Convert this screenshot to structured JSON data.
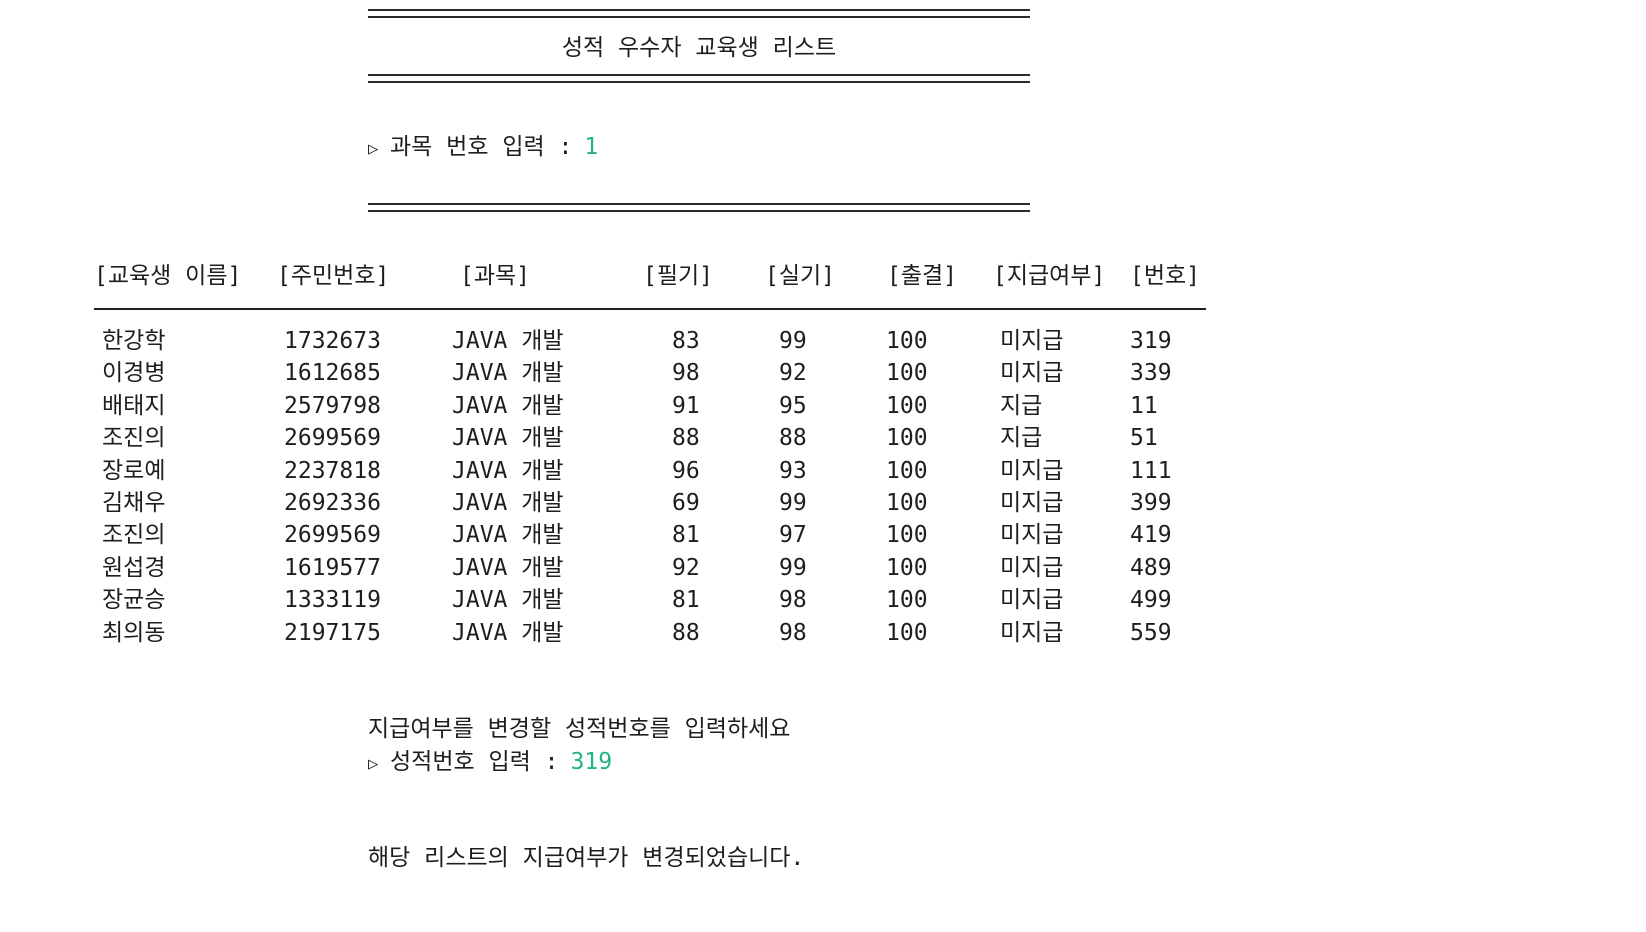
{
  "title": "성적 우수자 교육생 리스트",
  "subject_prompt": {
    "label": "과목 번호 입력 :",
    "value": "1"
  },
  "table": {
    "headers": {
      "name": "[교육생 이름]",
      "ssn": "[주민번호]",
      "subject": "[과목]",
      "written": "[필기]",
      "practical": "[실기]",
      "attendance": "[출결]",
      "payment": "[지급여부]",
      "number": "[번호]"
    },
    "rows": [
      {
        "name": "한강학",
        "ssn": "1732673",
        "subject": "JAVA 개발",
        "written": "83",
        "practical": "99",
        "attendance": "100",
        "payment": "미지급",
        "number": "319"
      },
      {
        "name": "이경병",
        "ssn": "1612685",
        "subject": "JAVA 개발",
        "written": "98",
        "practical": "92",
        "attendance": "100",
        "payment": "미지급",
        "number": "339"
      },
      {
        "name": "배태지",
        "ssn": "2579798",
        "subject": "JAVA 개발",
        "written": "91",
        "practical": "95",
        "attendance": "100",
        "payment": "지급",
        "number": "11"
      },
      {
        "name": "조진의",
        "ssn": "2699569",
        "subject": "JAVA 개발",
        "written": "88",
        "practical": "88",
        "attendance": "100",
        "payment": "지급",
        "number": "51"
      },
      {
        "name": "장로예",
        "ssn": "2237818",
        "subject": "JAVA 개발",
        "written": "96",
        "practical": "93",
        "attendance": "100",
        "payment": "미지급",
        "number": "111"
      },
      {
        "name": "김채우",
        "ssn": "2692336",
        "subject": "JAVA 개발",
        "written": "69",
        "practical": "99",
        "attendance": "100",
        "payment": "미지급",
        "number": "399"
      },
      {
        "name": "조진의",
        "ssn": "2699569",
        "subject": "JAVA 개발",
        "written": "81",
        "practical": "97",
        "attendance": "100",
        "payment": "미지급",
        "number": "419"
      },
      {
        "name": "원섭경",
        "ssn": "1619577",
        "subject": "JAVA 개발",
        "written": "92",
        "practical": "99",
        "attendance": "100",
        "payment": "미지급",
        "number": "489"
      },
      {
        "name": "장균승",
        "ssn": "1333119",
        "subject": "JAVA 개발",
        "written": "81",
        "practical": "98",
        "attendance": "100",
        "payment": "미지급",
        "number": "499"
      },
      {
        "name": "최의동",
        "ssn": "2197175",
        "subject": "JAVA 개발",
        "written": "88",
        "practical": "98",
        "attendance": "100",
        "payment": "미지급",
        "number": "559"
      }
    ]
  },
  "change_prompt": {
    "instruction": "지급여부를 변경할 성적번호를 입력하세요",
    "label": "성적번호 입력 :",
    "value": "319"
  },
  "result_message": "해당 리스트의 지급여부가 변경되었습니다.",
  "arrow_glyph": "▷",
  "colors": {
    "input_value": "#23b283",
    "text": "#1e1e1e"
  }
}
